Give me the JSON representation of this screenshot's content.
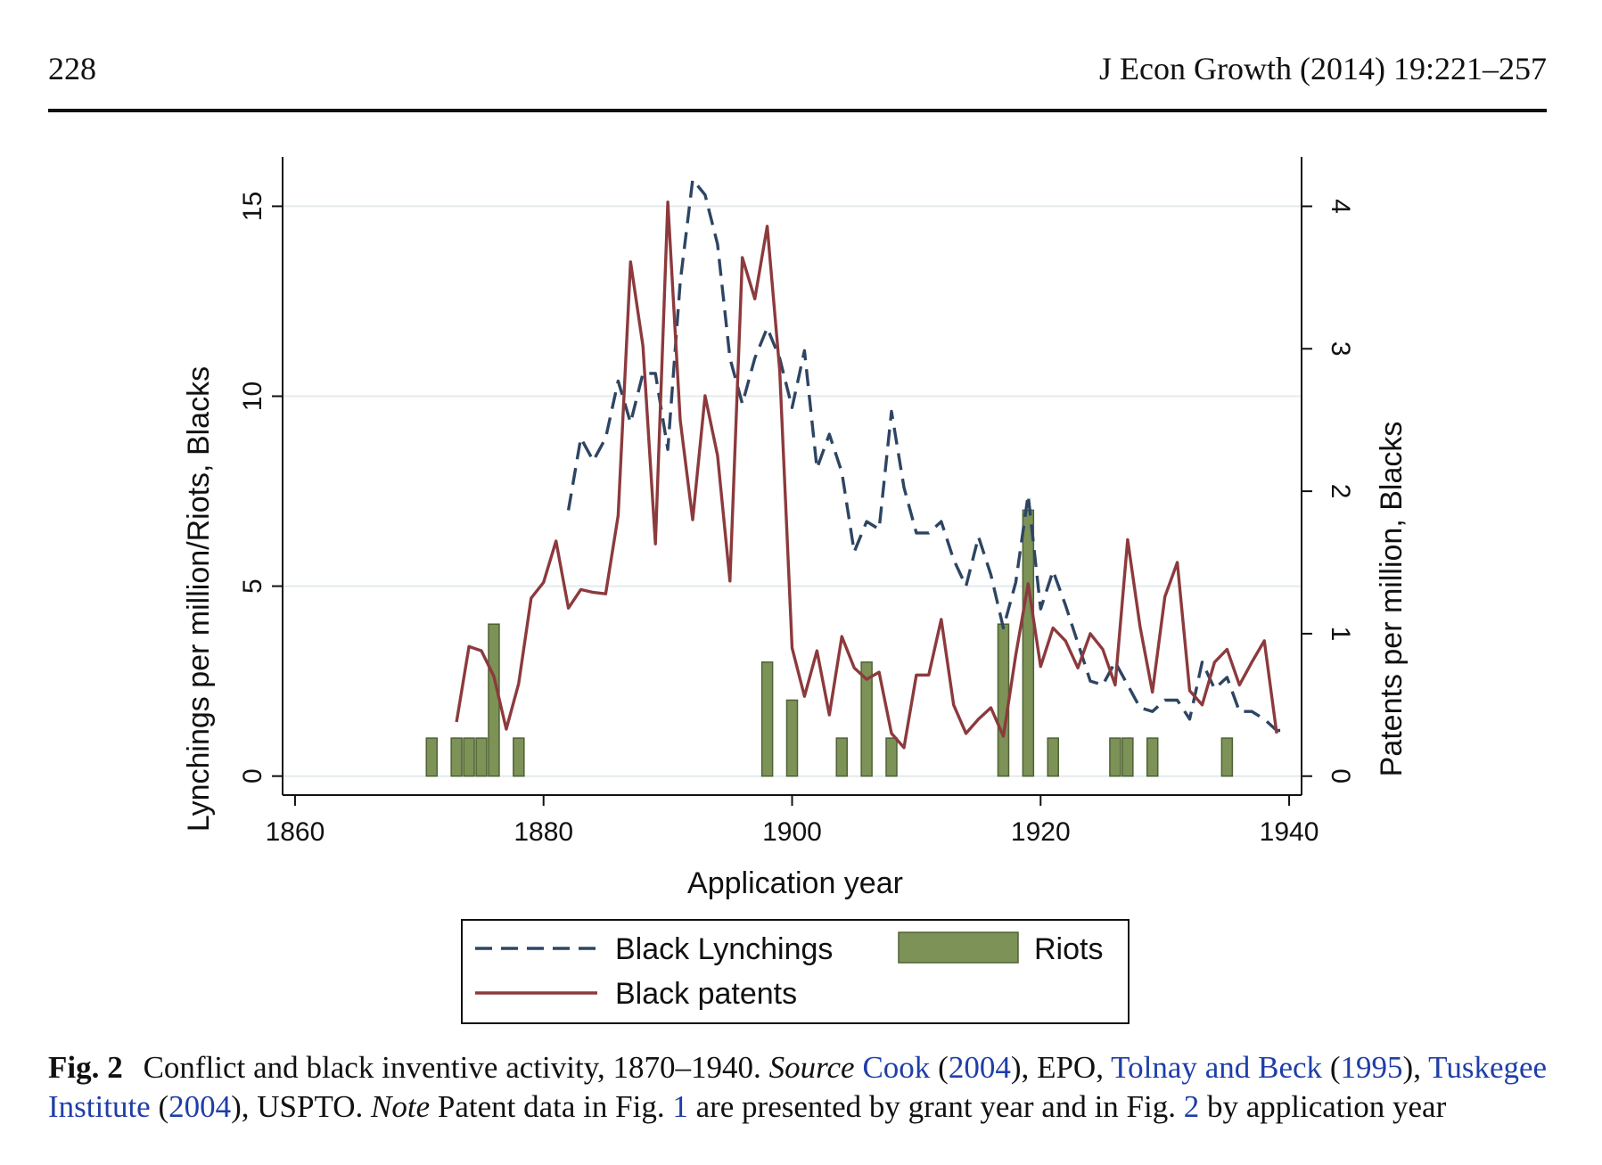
{
  "header": {
    "page_number": "228",
    "journal": "J Econ Growth (2014) 19:221–257"
  },
  "chart_data": {
    "type": "line",
    "xlabel": "Application year",
    "ylabel_left": "Lynchings per million/Riots, Blacks",
    "ylabel_right": "Patents per million, Blacks",
    "xlim": [
      1859,
      1941
    ],
    "ylim_left": [
      -0.5,
      16.3
    ],
    "ylim_right": [
      -0.133,
      4.347
    ],
    "x_ticks": [
      1860,
      1880,
      1900,
      1920,
      1940
    ],
    "y_ticks_left": [
      0,
      5,
      10,
      15
    ],
    "y_ticks_right": [
      0,
      1,
      2,
      3,
      4
    ],
    "grid": "horizontal",
    "legend_position": "bottom",
    "legend": {
      "lynchings": "Black Lynchings",
      "riots": "Riots",
      "patents": "Black patents"
    },
    "colors": {
      "lynchings": "#2d4563",
      "patents": "#8c3a3d",
      "riots": "#7d9257",
      "riots_edge": "#4f6233"
    },
    "series": [
      {
        "key": "lynchings",
        "name": "Black Lynchings",
        "axis": "left",
        "style": "dashed",
        "x": [
          1882,
          1883,
          1884,
          1885,
          1886,
          1887,
          1888,
          1889,
          1890,
          1891,
          1892,
          1893,
          1894,
          1895,
          1896,
          1897,
          1898,
          1899,
          1900,
          1901,
          1902,
          1903,
          1904,
          1905,
          1906,
          1907,
          1908,
          1909,
          1910,
          1911,
          1912,
          1913,
          1914,
          1915,
          1916,
          1917,
          1918,
          1919,
          1920,
          1921,
          1922,
          1923,
          1924,
          1925,
          1926,
          1927,
          1928,
          1929,
          1930,
          1931,
          1932,
          1933,
          1934,
          1935,
          1936,
          1937,
          1938,
          1939,
          1940
        ],
        "y": [
          7.0,
          8.9,
          8.3,
          8.9,
          10.4,
          9.3,
          10.6,
          10.6,
          8.6,
          13.0,
          15.7,
          15.3,
          14.0,
          11.0,
          9.8,
          11.0,
          11.8,
          11.0,
          9.7,
          11.2,
          8.1,
          9.0,
          8.0,
          5.9,
          6.7,
          6.5,
          9.6,
          7.6,
          6.4,
          6.4,
          6.7,
          5.7,
          5.0,
          6.3,
          5.3,
          3.9,
          5.1,
          7.4,
          4.4,
          5.4,
          4.5,
          3.5,
          2.5,
          2.4,
          3.0,
          2.4,
          1.8,
          1.7,
          2.0,
          2.0,
          1.5,
          3.0,
          2.3,
          2.6,
          1.7,
          1.7,
          1.5,
          1.2,
          1.2
        ]
      },
      {
        "key": "patents",
        "name": "Black patents",
        "axis": "right",
        "style": "solid",
        "x": [
          1873,
          1874,
          1875,
          1876,
          1877,
          1878,
          1879,
          1880,
          1881,
          1882,
          1883,
          1884,
          1885,
          1886,
          1887,
          1888,
          1889,
          1890,
          1891,
          1892,
          1893,
          1894,
          1895,
          1896,
          1897,
          1898,
          1899,
          1900,
          1901,
          1902,
          1903,
          1904,
          1905,
          1906,
          1907,
          1908,
          1909,
          1910,
          1911,
          1912,
          1913,
          1914,
          1915,
          1916,
          1917,
          1918,
          1919,
          1920,
          1921,
          1922,
          1923,
          1924,
          1925,
          1926,
          1927,
          1928,
          1929,
          1930,
          1931,
          1932,
          1933,
          1934,
          1935,
          1936,
          1937,
          1938,
          1939
        ],
        "y": [
          0.38,
          0.91,
          0.88,
          0.7,
          0.33,
          0.65,
          1.25,
          1.36,
          1.65,
          1.18,
          1.31,
          1.29,
          1.28,
          1.83,
          3.61,
          3.02,
          1.63,
          4.03,
          2.5,
          1.8,
          2.67,
          2.25,
          1.37,
          3.64,
          3.35,
          3.86,
          2.85,
          0.9,
          0.56,
          0.88,
          0.43,
          0.98,
          0.76,
          0.68,
          0.73,
          0.3,
          0.2,
          0.71,
          0.71,
          1.1,
          0.5,
          0.3,
          0.4,
          0.48,
          0.28,
          0.85,
          1.35,
          0.77,
          1.04,
          0.95,
          0.76,
          1.0,
          0.89,
          0.64,
          1.66,
          1.05,
          0.59,
          1.26,
          1.5,
          0.6,
          0.5,
          0.8,
          0.89,
          0.64,
          0.8,
          0.95,
          0.3
        ]
      }
    ],
    "bars": {
      "key": "riots",
      "name": "Riots",
      "axis": "left",
      "x": [
        1871,
        1873,
        1874,
        1875,
        1876,
        1878,
        1898,
        1900,
        1904,
        1906,
        1908,
        1917,
        1919,
        1921,
        1926,
        1927,
        1929,
        1935
      ],
      "y": [
        1,
        1,
        1,
        1,
        4,
        1,
        3,
        2,
        1,
        3,
        1,
        4,
        7,
        1,
        1,
        1,
        1,
        1
      ]
    }
  },
  "caption": {
    "fig_label": "Fig. 2",
    "t1": "Conflict and black inventive activity, 1870–1940.",
    "source_label": "Source",
    "cook": "Cook",
    "p_open1": "(",
    "cook_year": "2004",
    "t2": "), EPO,",
    "tolnay": "Tolnay and Beck",
    "p_open2": "(",
    "tolnay_year": "1995",
    "t3": "),",
    "tuskegee": "Tuskegee Institute",
    "p_open3": "(",
    "tuskegee_year": "2004",
    "t4": "), USPTO.",
    "note_label": "Note",
    "t5": "Patent data in Fig.",
    "fig1": "1",
    "t6": "are presented by grant year and in Fig.",
    "fig2": "2",
    "t7": "by application year"
  }
}
